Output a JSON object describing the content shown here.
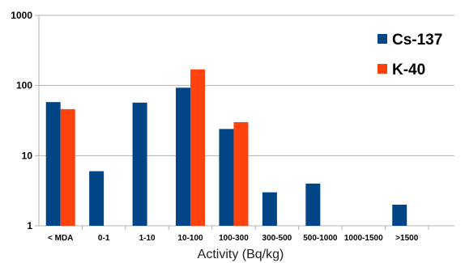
{
  "chart_data": {
    "type": "bar",
    "xlabel": "Activity (Bq/kg)",
    "ylabel": "",
    "yscale": "log",
    "ylim": [
      1,
      1000
    ],
    "yticks": [
      "1",
      "10",
      "100",
      "1000"
    ],
    "grid": "horizontal",
    "legend_position": "top-right",
    "categories": [
      "< MDA",
      "0-1",
      "1-10",
      "10-100",
      "100-300",
      "300-500",
      "500-1000",
      "1000-1500",
      ">1500"
    ],
    "series": [
      {
        "name": "Cs-137",
        "color": "#004586",
        "values": [
          58,
          6,
          57,
          93,
          24,
          3,
          4,
          null,
          2
        ]
      },
      {
        "name": "K-40",
        "color": "#ff420e",
        "values": [
          46,
          null,
          null,
          170,
          30,
          null,
          null,
          null,
          null
        ]
      }
    ]
  }
}
